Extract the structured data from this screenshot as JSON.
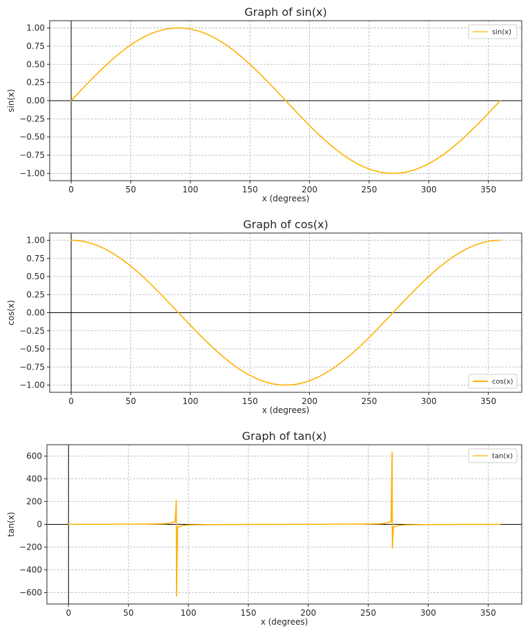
{
  "chart_data": [
    {
      "type": "line",
      "title": "Graph of sin(x)",
      "xlabel": "x (degrees)",
      "ylabel": "sin(x)",
      "xlim": [
        -18,
        378
      ],
      "ylim": [
        -1.1,
        1.1
      ],
      "xticks": [
        0,
        50,
        100,
        150,
        200,
        250,
        300,
        350
      ],
      "yticks": [
        -1.0,
        -0.75,
        -0.5,
        -0.25,
        0.0,
        0.25,
        0.5,
        0.75,
        1.0
      ],
      "ytick_decimals": 2,
      "grid": true,
      "legend_position": "top-right",
      "series": [
        {
          "name": "sin(x)",
          "function": "sin",
          "x_range": [
            0,
            360
          ],
          "color": "#FFB000"
        }
      ]
    },
    {
      "type": "line",
      "title": "Graph of cos(x)",
      "xlabel": "x (degrees)",
      "ylabel": "cos(x)",
      "xlim": [
        -18,
        378
      ],
      "ylim": [
        -1.1,
        1.1
      ],
      "xticks": [
        0,
        50,
        100,
        150,
        200,
        250,
        300,
        350
      ],
      "yticks": [
        -1.0,
        -0.75,
        -0.5,
        -0.25,
        0.0,
        0.25,
        0.5,
        0.75,
        1.0
      ],
      "ytick_decimals": 2,
      "grid": true,
      "legend_position": "bottom-right",
      "series": [
        {
          "name": "cos(x)",
          "function": "cos",
          "x_range": [
            0,
            360
          ],
          "color": "#FFB000"
        }
      ]
    },
    {
      "type": "line",
      "title": "Graph of tan(x)",
      "xlabel": "x (degrees)",
      "ylabel": "tan(x)",
      "xlim": [
        -18,
        378
      ],
      "ylim": [
        -700,
        700
      ],
      "xticks": [
        0,
        50,
        100,
        150,
        200,
        250,
        300,
        350
      ],
      "yticks": [
        -600,
        -400,
        -200,
        0,
        200,
        400,
        600
      ],
      "ytick_decimals": 0,
      "grid": true,
      "legend_position": "top-right",
      "series": [
        {
          "name": "tan(x)",
          "function": "tan",
          "x_range": [
            0,
            360
          ],
          "color": "#FFB000",
          "spikes": [
            {
              "x": 89.9,
              "y": 210
            },
            {
              "x": 90.1,
              "y": -630
            },
            {
              "x": 269.9,
              "y": 635
            },
            {
              "x": 270.1,
              "y": -210
            }
          ],
          "clip": 22
        }
      ]
    }
  ]
}
